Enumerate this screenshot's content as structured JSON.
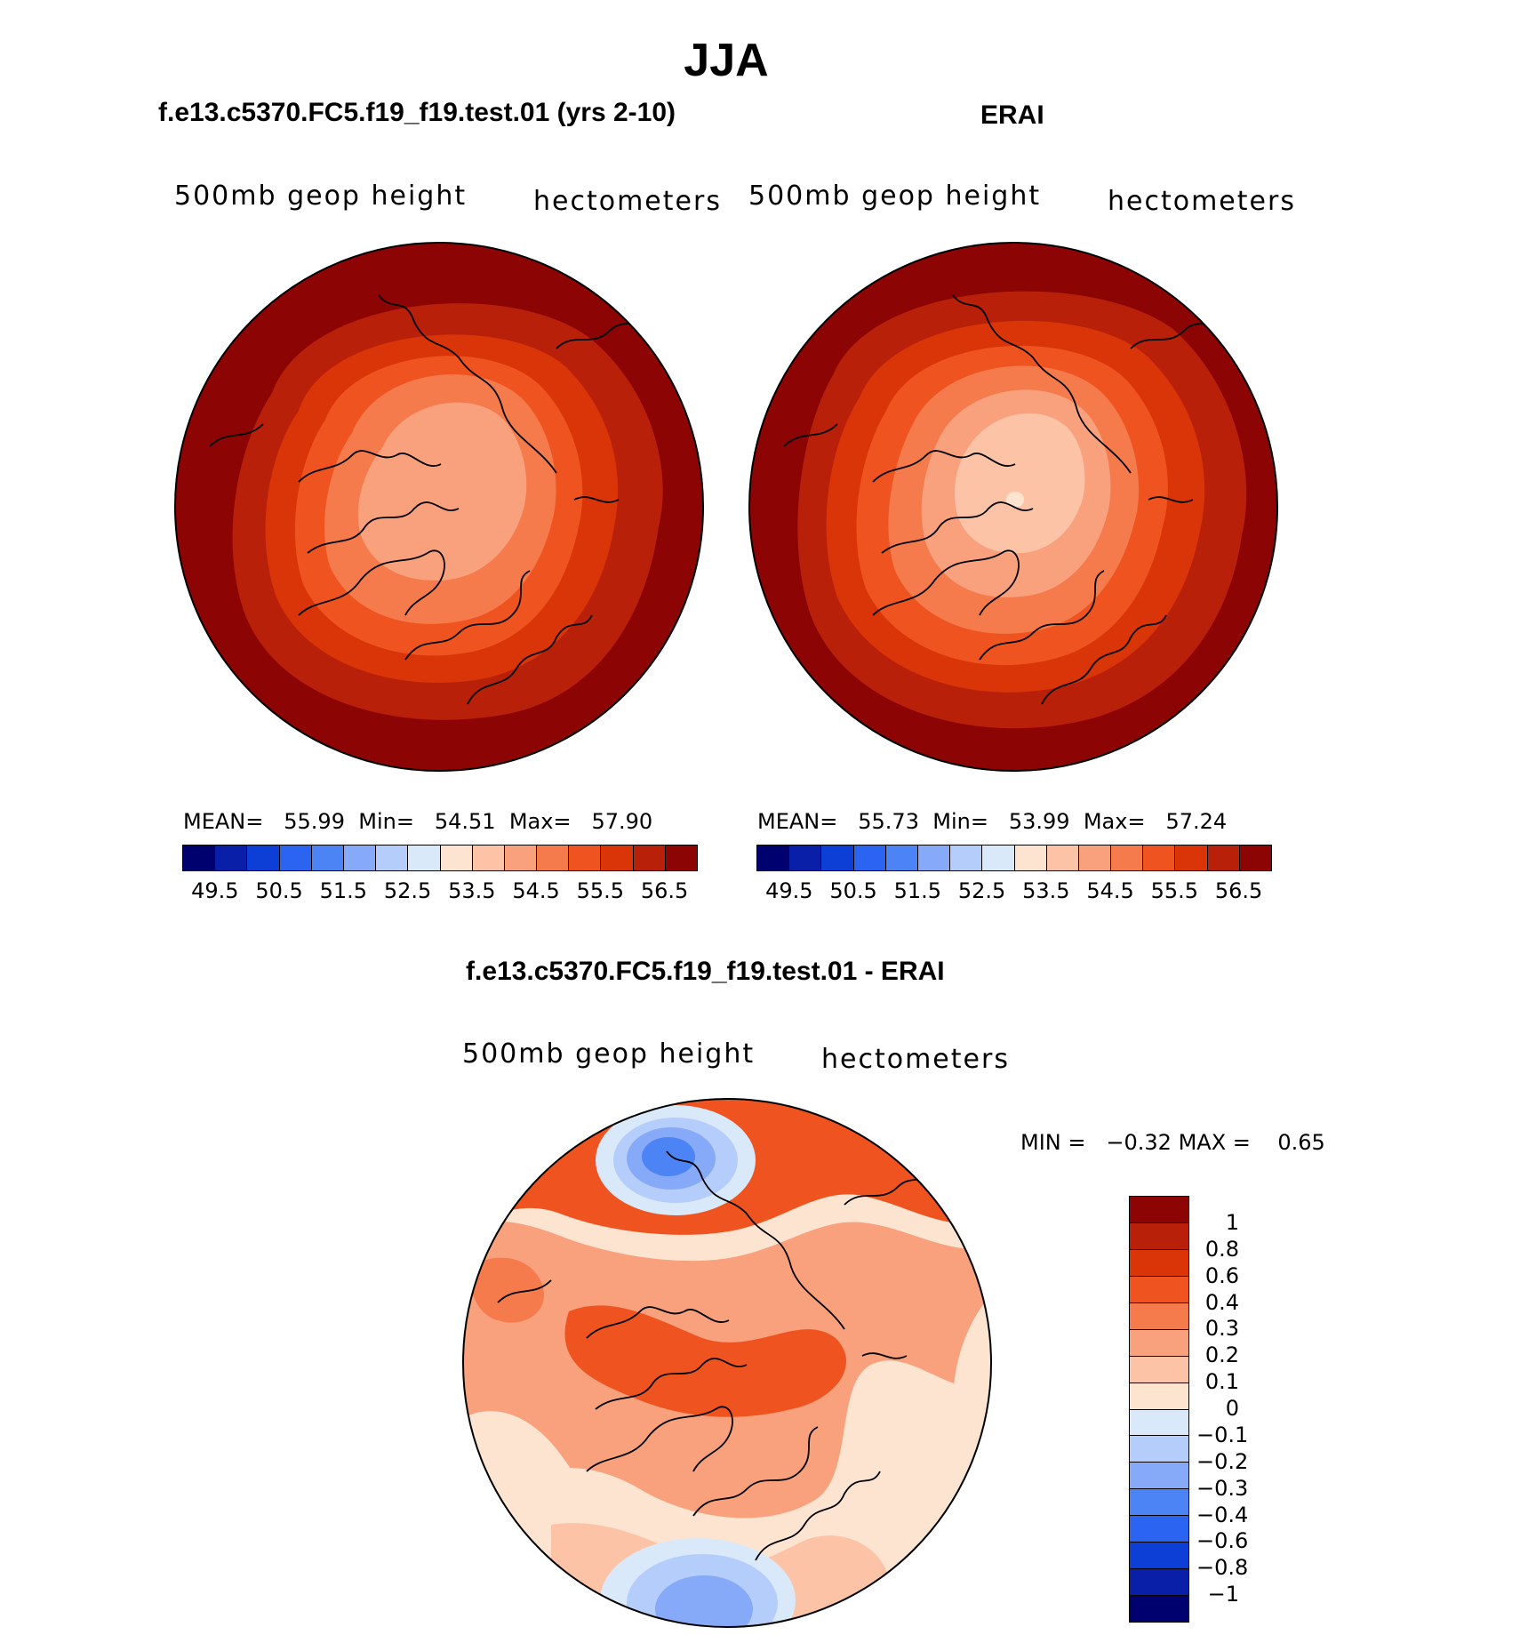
{
  "season": "JJA",
  "panels": [
    {
      "case_title": "f.e13.c5370.FC5.f19_f19.test.01 (yrs 2-10)",
      "variable": "500mb geop height",
      "units": "hectometers",
      "mean_label": "MEAN=",
      "mean": "55.99",
      "min_label": "Min=",
      "min": "54.51",
      "max_label": "Max=",
      "max": "57.90",
      "colorbar_ticks": [
        "49.5",
        "50.5",
        "51.5",
        "52.5",
        "53.5",
        "54.5",
        "55.5",
        "56.5"
      ]
    },
    {
      "case_title": "ERAI",
      "variable": "500mb geop height",
      "units": "hectometers",
      "mean_label": "MEAN=",
      "mean": "55.73",
      "min_label": "Min=",
      "min": "53.99",
      "max_label": "Max=",
      "max": "57.24",
      "colorbar_ticks": [
        "49.5",
        "50.5",
        "51.5",
        "52.5",
        "53.5",
        "54.5",
        "55.5",
        "56.5"
      ]
    }
  ],
  "diff": {
    "case_title": "f.e13.c5370.FC5.f19_f19.test.01 - ERAI",
    "variable": "500mb geop height",
    "units": "hectometers",
    "min_label": "MIN =",
    "min": "−0.32",
    "max_label": "MAX =",
    "max": "0.65",
    "colorbar_ticks": [
      "1",
      "0.8",
      "0.6",
      "0.4",
      "0.3",
      "0.2",
      "0.1",
      "0",
      "−0.1",
      "−0.2",
      "−0.3",
      "−0.4",
      "−0.6",
      "−0.8",
      "−1"
    ]
  },
  "colors": {
    "field": [
      "#00006e",
      "#0a1fa8",
      "#0d3fd6",
      "#2a64f0",
      "#4c83f5",
      "#86aaf7",
      "#b5cdfa",
      "#d9e9fa",
      "#fde4d0",
      "#fcc3a6",
      "#f9a07c",
      "#f57a4c",
      "#ef5420",
      "#da3409",
      "#b8200a",
      "#8c0404"
    ],
    "diff": [
      "#8c0404",
      "#b8200a",
      "#da3409",
      "#ef5420",
      "#f57a4c",
      "#f9a07c",
      "#fcc3a6",
      "#fde4d0",
      "#d9e9fa",
      "#b5cdfa",
      "#86aaf7",
      "#4c83f5",
      "#2a64f0",
      "#0d3fd6",
      "#0a1fa8",
      "#00006e"
    ]
  }
}
